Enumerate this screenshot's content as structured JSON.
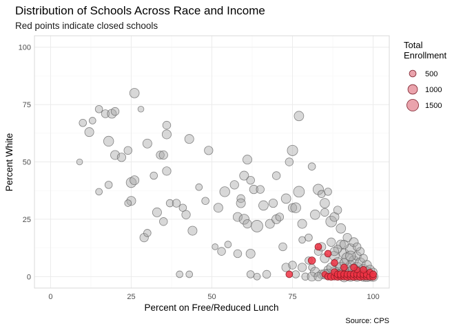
{
  "chart_data": {
    "type": "scatter",
    "title": "Distribution of Schools Across Race and Income",
    "subtitle": "Red points indicate closed schools",
    "xlabel": "Percent on Free/Reduced Lunch",
    "ylabel": "Percent White",
    "caption": "Source: CPS",
    "xlim": [
      -5,
      105
    ],
    "ylim": [
      -5,
      105
    ],
    "x_ticks": [
      0,
      25,
      50,
      75,
      100
    ],
    "y_ticks": [
      0,
      25,
      50,
      75,
      100
    ],
    "grid": true,
    "legend": {
      "title_line1": "Total",
      "title_line2": "Enrollment",
      "position": "right",
      "entries": [
        {
          "label": "500",
          "value": 500
        },
        {
          "label": "1000",
          "value": 1000
        },
        {
          "label": "1500",
          "value": 1500
        }
      ]
    },
    "colors": {
      "open_fill": "#a8a8a8",
      "open_stroke": "#555555",
      "closed_fill": "#ee3344",
      "closed_stroke": "#8a1a22",
      "panel_border": "#d9d9d9",
      "grid_major": "#ebebeb",
      "grid_minor": "#f5f5f5"
    },
    "series": [
      {
        "closed": false,
        "points": [
          [
            9,
            50,
            400
          ],
          [
            10,
            67,
            600
          ],
          [
            13,
            68,
            500
          ],
          [
            12,
            63,
            900
          ],
          [
            15,
            73,
            600
          ],
          [
            17,
            71,
            700
          ],
          [
            19,
            71,
            900
          ],
          [
            20,
            72,
            700
          ],
          [
            18,
            59,
            1100
          ],
          [
            20,
            53,
            900
          ],
          [
            22,
            52,
            800
          ],
          [
            24,
            55,
            700
          ],
          [
            25,
            41,
            1100
          ],
          [
            26,
            42,
            900
          ],
          [
            26,
            80,
            1000
          ],
          [
            28,
            73,
            400
          ],
          [
            30,
            58,
            900
          ],
          [
            32,
            44,
            600
          ],
          [
            34,
            53,
            700
          ],
          [
            35,
            53,
            800
          ],
          [
            36,
            62,
            900
          ],
          [
            36,
            46,
            800
          ],
          [
            36,
            66,
            700
          ],
          [
            33,
            28,
            900
          ],
          [
            35,
            24,
            700
          ],
          [
            37,
            32,
            600
          ],
          [
            39,
            32,
            700
          ],
          [
            41,
            30,
            600
          ],
          [
            42,
            27,
            800
          ],
          [
            44,
            20,
            900
          ],
          [
            43,
            60,
            900
          ],
          [
            46,
            39,
            500
          ],
          [
            48,
            33,
            600
          ],
          [
            49,
            55,
            800
          ],
          [
            51,
            13,
            400
          ],
          [
            52,
            30,
            900
          ],
          [
            53,
            11,
            700
          ],
          [
            54,
            37,
            1100
          ],
          [
            55,
            14,
            500
          ],
          [
            57,
            40,
            800
          ],
          [
            58,
            26,
            900
          ],
          [
            59,
            34,
            700
          ],
          [
            59,
            32,
            900
          ],
          [
            60,
            25,
            1100
          ],
          [
            60,
            44,
            900
          ],
          [
            61,
            51,
            900
          ],
          [
            61,
            23,
            800
          ],
          [
            62,
            42,
            700
          ],
          [
            62,
            10,
            900
          ],
          [
            63,
            38,
            800
          ],
          [
            64,
            22,
            1500
          ],
          [
            65,
            38,
            700
          ],
          [
            66,
            31,
            1000
          ],
          [
            67,
            1,
            700
          ],
          [
            68,
            23,
            900
          ],
          [
            69,
            32,
            800
          ],
          [
            70,
            44,
            700
          ],
          [
            70,
            25,
            900
          ],
          [
            71,
            26,
            700
          ],
          [
            72,
            13,
            700
          ],
          [
            73,
            34,
            1000
          ],
          [
            74,
            50,
            700
          ],
          [
            75,
            30,
            800
          ],
          [
            75,
            55,
            1200
          ],
          [
            76,
            30,
            1100
          ],
          [
            77,
            37,
            1300
          ],
          [
            77,
            70,
            1000
          ],
          [
            78,
            23,
            900
          ],
          [
            78,
            16,
            500
          ],
          [
            80,
            17,
            600
          ],
          [
            81,
            48,
            600
          ],
          [
            82,
            27,
            1000
          ],
          [
            83,
            38,
            1200
          ],
          [
            84,
            36,
            600
          ],
          [
            85,
            32,
            1000
          ],
          [
            85,
            28,
            700
          ],
          [
            86,
            37,
            600
          ],
          [
            87,
            24,
            1300
          ],
          [
            88,
            26,
            900
          ],
          [
            89,
            29,
            700
          ],
          [
            90,
            21,
            1000
          ],
          [
            25,
            33,
            900
          ],
          [
            24,
            32,
            500
          ],
          [
            15,
            37,
            500
          ],
          [
            18,
            40,
            600
          ],
          [
            29,
            17,
            800
          ],
          [
            30,
            19,
            600
          ],
          [
            40,
            1,
            500
          ],
          [
            43,
            1,
            500
          ],
          [
            58,
            10,
            700
          ],
          [
            62,
            1,
            600
          ],
          [
            64,
            0,
            500
          ],
          [
            73,
            4,
            800
          ],
          [
            75,
            5,
            700
          ],
          [
            76,
            1,
            600
          ],
          [
            78,
            4,
            800
          ],
          [
            80,
            7,
            600
          ],
          [
            81,
            4,
            500
          ],
          [
            82,
            2,
            1000
          ],
          [
            83,
            11,
            700
          ],
          [
            84,
            13,
            800
          ],
          [
            85,
            8,
            900
          ],
          [
            86,
            3,
            700
          ],
          [
            87,
            15,
            800
          ],
          [
            88,
            9,
            1000
          ],
          [
            89,
            6,
            1200
          ],
          [
            90,
            14,
            900
          ],
          [
            90,
            4,
            1100
          ],
          [
            91,
            2,
            1300
          ],
          [
            91,
            10,
            1000
          ],
          [
            92,
            8,
            1400
          ],
          [
            92,
            3,
            1100
          ],
          [
            93,
            12,
            1200
          ],
          [
            93,
            5,
            900
          ],
          [
            94,
            1,
            1300
          ],
          [
            94,
            7,
            1000
          ],
          [
            95,
            4,
            1200
          ],
          [
            95,
            9,
            800
          ],
          [
            96,
            2,
            1000
          ],
          [
            96,
            6,
            1100
          ],
          [
            97,
            3,
            1200
          ],
          [
            97,
            1,
            900
          ],
          [
            98,
            5,
            1000
          ],
          [
            98,
            2,
            1200
          ],
          [
            99,
            1,
            800
          ],
          [
            99,
            3,
            900
          ],
          [
            100,
            0,
            1000
          ],
          [
            100,
            2,
            700
          ],
          [
            88,
            2,
            1200
          ],
          [
            87,
            4,
            900
          ],
          [
            86,
            1,
            1100
          ],
          [
            89,
            1,
            1000
          ],
          [
            90,
            1,
            1100
          ],
          [
            91,
            6,
            800
          ],
          [
            92,
            1,
            900
          ],
          [
            93,
            2,
            1200
          ],
          [
            94,
            3,
            1300
          ],
          [
            95,
            1,
            1100
          ],
          [
            96,
            1,
            900
          ],
          [
            97,
            0,
            1000
          ],
          [
            98,
            0,
            1100
          ],
          [
            99,
            0,
            900
          ],
          [
            84,
            1,
            800
          ],
          [
            85,
            1,
            1000
          ],
          [
            92,
            17,
            800
          ],
          [
            96,
            11,
            700
          ],
          [
            97,
            8,
            700
          ],
          [
            94,
            15,
            900
          ],
          [
            79,
            0,
            600
          ],
          [
            81,
            0,
            900
          ],
          [
            83,
            0,
            800
          ],
          [
            91,
            0,
            1200
          ],
          [
            93,
            0,
            1000
          ],
          [
            95,
            0,
            1000
          ],
          [
            89,
            12,
            700
          ],
          [
            88,
            11,
            800
          ],
          [
            95,
            13,
            700
          ],
          [
            93,
            9,
            1100
          ],
          [
            91,
            14,
            800
          ]
        ]
      },
      {
        "closed": true,
        "points": [
          [
            74,
            1,
            500
          ],
          [
            81,
            7,
            600
          ],
          [
            83,
            13,
            500
          ],
          [
            86,
            10,
            500
          ],
          [
            85,
            1,
            400
          ],
          [
            86,
            0,
            500
          ],
          [
            87,
            0,
            600
          ],
          [
            88,
            0,
            500
          ],
          [
            88,
            2,
            500
          ],
          [
            89,
            0,
            600
          ],
          [
            89,
            1,
            500
          ],
          [
            90,
            0,
            500
          ],
          [
            90,
            1,
            600
          ],
          [
            91,
            0,
            500
          ],
          [
            91,
            1,
            500
          ],
          [
            92,
            0,
            600
          ],
          [
            92,
            1,
            500
          ],
          [
            93,
            0,
            500
          ],
          [
            93,
            1,
            500
          ],
          [
            94,
            0,
            600
          ],
          [
            94,
            1,
            500
          ],
          [
            95,
            0,
            500
          ],
          [
            95,
            1,
            500
          ],
          [
            96,
            0,
            600
          ],
          [
            96,
            1,
            500
          ],
          [
            97,
            0,
            500
          ],
          [
            97,
            1,
            500
          ],
          [
            98,
            0,
            500
          ],
          [
            98,
            1,
            500
          ],
          [
            99,
            0,
            500
          ],
          [
            99,
            2,
            400
          ],
          [
            100,
            0,
            500
          ],
          [
            100,
            1,
            500
          ],
          [
            97,
            3,
            500
          ],
          [
            95,
            3,
            400
          ],
          [
            88,
            6,
            500
          ],
          [
            91,
            4,
            500
          ],
          [
            94,
            4,
            500
          ]
        ]
      }
    ]
  }
}
